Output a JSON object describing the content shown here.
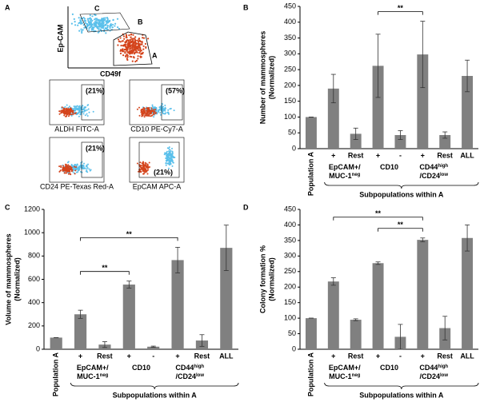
{
  "panel_a": {
    "label": "A",
    "gates": [
      "C",
      "B",
      "A"
    ],
    "y_axis": "Ep-CAM",
    "x_axis": "CD49f",
    "subplots": [
      {
        "percent": "(21%)",
        "x_axis": "ALDH FITC-A"
      },
      {
        "percent": "(57%)",
        "x_axis": "CD10 PE-Cy7-A"
      },
      {
        "percent": "(21%)",
        "x_axis": "CD24 PE-Texas Red-A"
      },
      {
        "percent": "(21%)",
        "x_axis": "EpCAM APC-A"
      }
    ]
  },
  "chart_data": [
    {
      "type": "bar",
      "panel": "B",
      "ylabel": "Number of mammospheres",
      "ylabel_sub": "(Normalized)",
      "xlabel": "Subpopulations within A",
      "categories": [
        "Population A",
        "+",
        "Rest",
        "+",
        "-",
        "+",
        "Rest",
        "ALL"
      ],
      "values": [
        100,
        190,
        47,
        262,
        43,
        298,
        43,
        230
      ],
      "errors": [
        0,
        45,
        18,
        100,
        14,
        105,
        10,
        50
      ],
      "color": "#808080",
      "ylim": [
        0,
        450
      ],
      "yticks": [
        0,
        50,
        100,
        150,
        200,
        250,
        300,
        350,
        400,
        450
      ],
      "groups": [
        {
          "members": [
            1,
            2
          ],
          "lines": [
            [
              "EpCAM+/"
            ],
            [
              "MUC-1",
              {
                "sup": "neg"
              }
            ]
          ]
        },
        {
          "members": [
            3,
            4
          ],
          "lines": [
            [
              "CD10"
            ]
          ]
        },
        {
          "members": [
            5,
            6
          ],
          "lines": [
            [
              "CD44",
              {
                "sup": "high"
              }
            ],
            [
              "/CD24",
              {
                "sup": "low"
              }
            ]
          ]
        }
      ],
      "significance": [
        {
          "text": "**",
          "from": 3,
          "to": 5
        }
      ]
    },
    {
      "type": "bar",
      "panel": "C",
      "ylabel": "Volume of mammospheres",
      "ylabel_sub": "(Normalized)",
      "xlabel": "Subpopulations within A",
      "categories": [
        "Population A",
        "+",
        "Rest",
        "+",
        "-",
        "+",
        "Rest",
        "ALL"
      ],
      "values": [
        100,
        300,
        40,
        555,
        22,
        765,
        75,
        870
      ],
      "errors": [
        0,
        35,
        25,
        30,
        5,
        110,
        50,
        195
      ],
      "color": "#808080",
      "ylim": [
        0,
        1200
      ],
      "yticks": [
        0,
        200,
        400,
        600,
        800,
        1000,
        1200
      ],
      "groups": [
        {
          "members": [
            1,
            2
          ],
          "lines": [
            [
              "EpCAM+/"
            ],
            [
              "MUC-1",
              {
                "sup": "neg"
              }
            ]
          ]
        },
        {
          "members": [
            3,
            4
          ],
          "lines": [
            [
              "CD10"
            ]
          ]
        },
        {
          "members": [
            5,
            6
          ],
          "lines": [
            [
              "CD44",
              {
                "sup": "high"
              }
            ],
            [
              "/CD24",
              {
                "sup": "low"
              }
            ]
          ]
        }
      ],
      "significance": [
        {
          "text": "**",
          "from": 1,
          "to": 3
        },
        {
          "text": "**",
          "from": 1,
          "to": 5
        }
      ]
    },
    {
      "type": "bar",
      "panel": "D",
      "ylabel": "Colony formation %",
      "ylabel_sub": "(Normalized)",
      "xlabel": "Subpopulations within A",
      "categories": [
        "Population A",
        "+",
        "Rest",
        "+",
        "-",
        "+",
        "Rest",
        "ALL"
      ],
      "values": [
        100,
        218,
        95,
        277,
        40,
        352,
        68,
        358
      ],
      "errors": [
        0,
        12,
        3,
        4,
        40,
        6,
        38,
        42
      ],
      "color": "#808080",
      "ylim": [
        0,
        450
      ],
      "yticks": [
        0,
        50,
        100,
        150,
        200,
        250,
        300,
        350,
        400,
        450
      ],
      "groups": [
        {
          "members": [
            1,
            2
          ],
          "lines": [
            [
              "EpCAM+/"
            ],
            [
              "MUC-1",
              {
                "sup": "neg"
              }
            ]
          ]
        },
        {
          "members": [
            3,
            4
          ],
          "lines": [
            [
              "CD10"
            ]
          ]
        },
        {
          "members": [
            5,
            6
          ],
          "lines": [
            [
              "CD44",
              {
                "sup": "high"
              }
            ],
            [
              "/CD24",
              {
                "sup": "low"
              }
            ]
          ]
        }
      ],
      "significance": [
        {
          "text": "**",
          "from": 3,
          "to": 5
        },
        {
          "text": "**",
          "from": 1,
          "to": 5
        }
      ]
    }
  ]
}
